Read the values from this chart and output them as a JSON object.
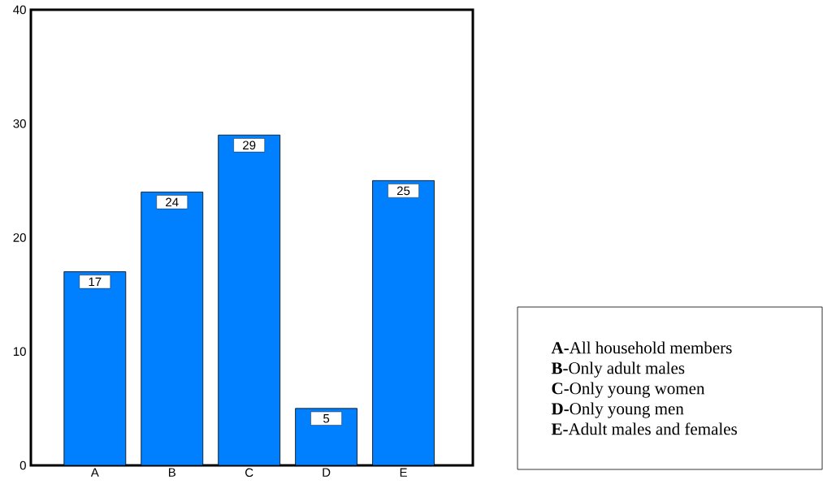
{
  "chart_data": {
    "type": "bar",
    "categories": [
      "A",
      "B",
      "C",
      "D",
      "E"
    ],
    "values": [
      17,
      24,
      29,
      5,
      25
    ],
    "color": "#0080ff",
    "data_labels": true,
    "ylim": [
      0,
      40
    ],
    "yticks": [
      0,
      10,
      20,
      30,
      40
    ],
    "grid": false,
    "annotations": [
      "**A-**All household members",
      "**B-**Only adult males",
      "**C-**Only young women",
      "**D-**Only young men",
      "**E-**Adult males and females"
    ]
  }
}
